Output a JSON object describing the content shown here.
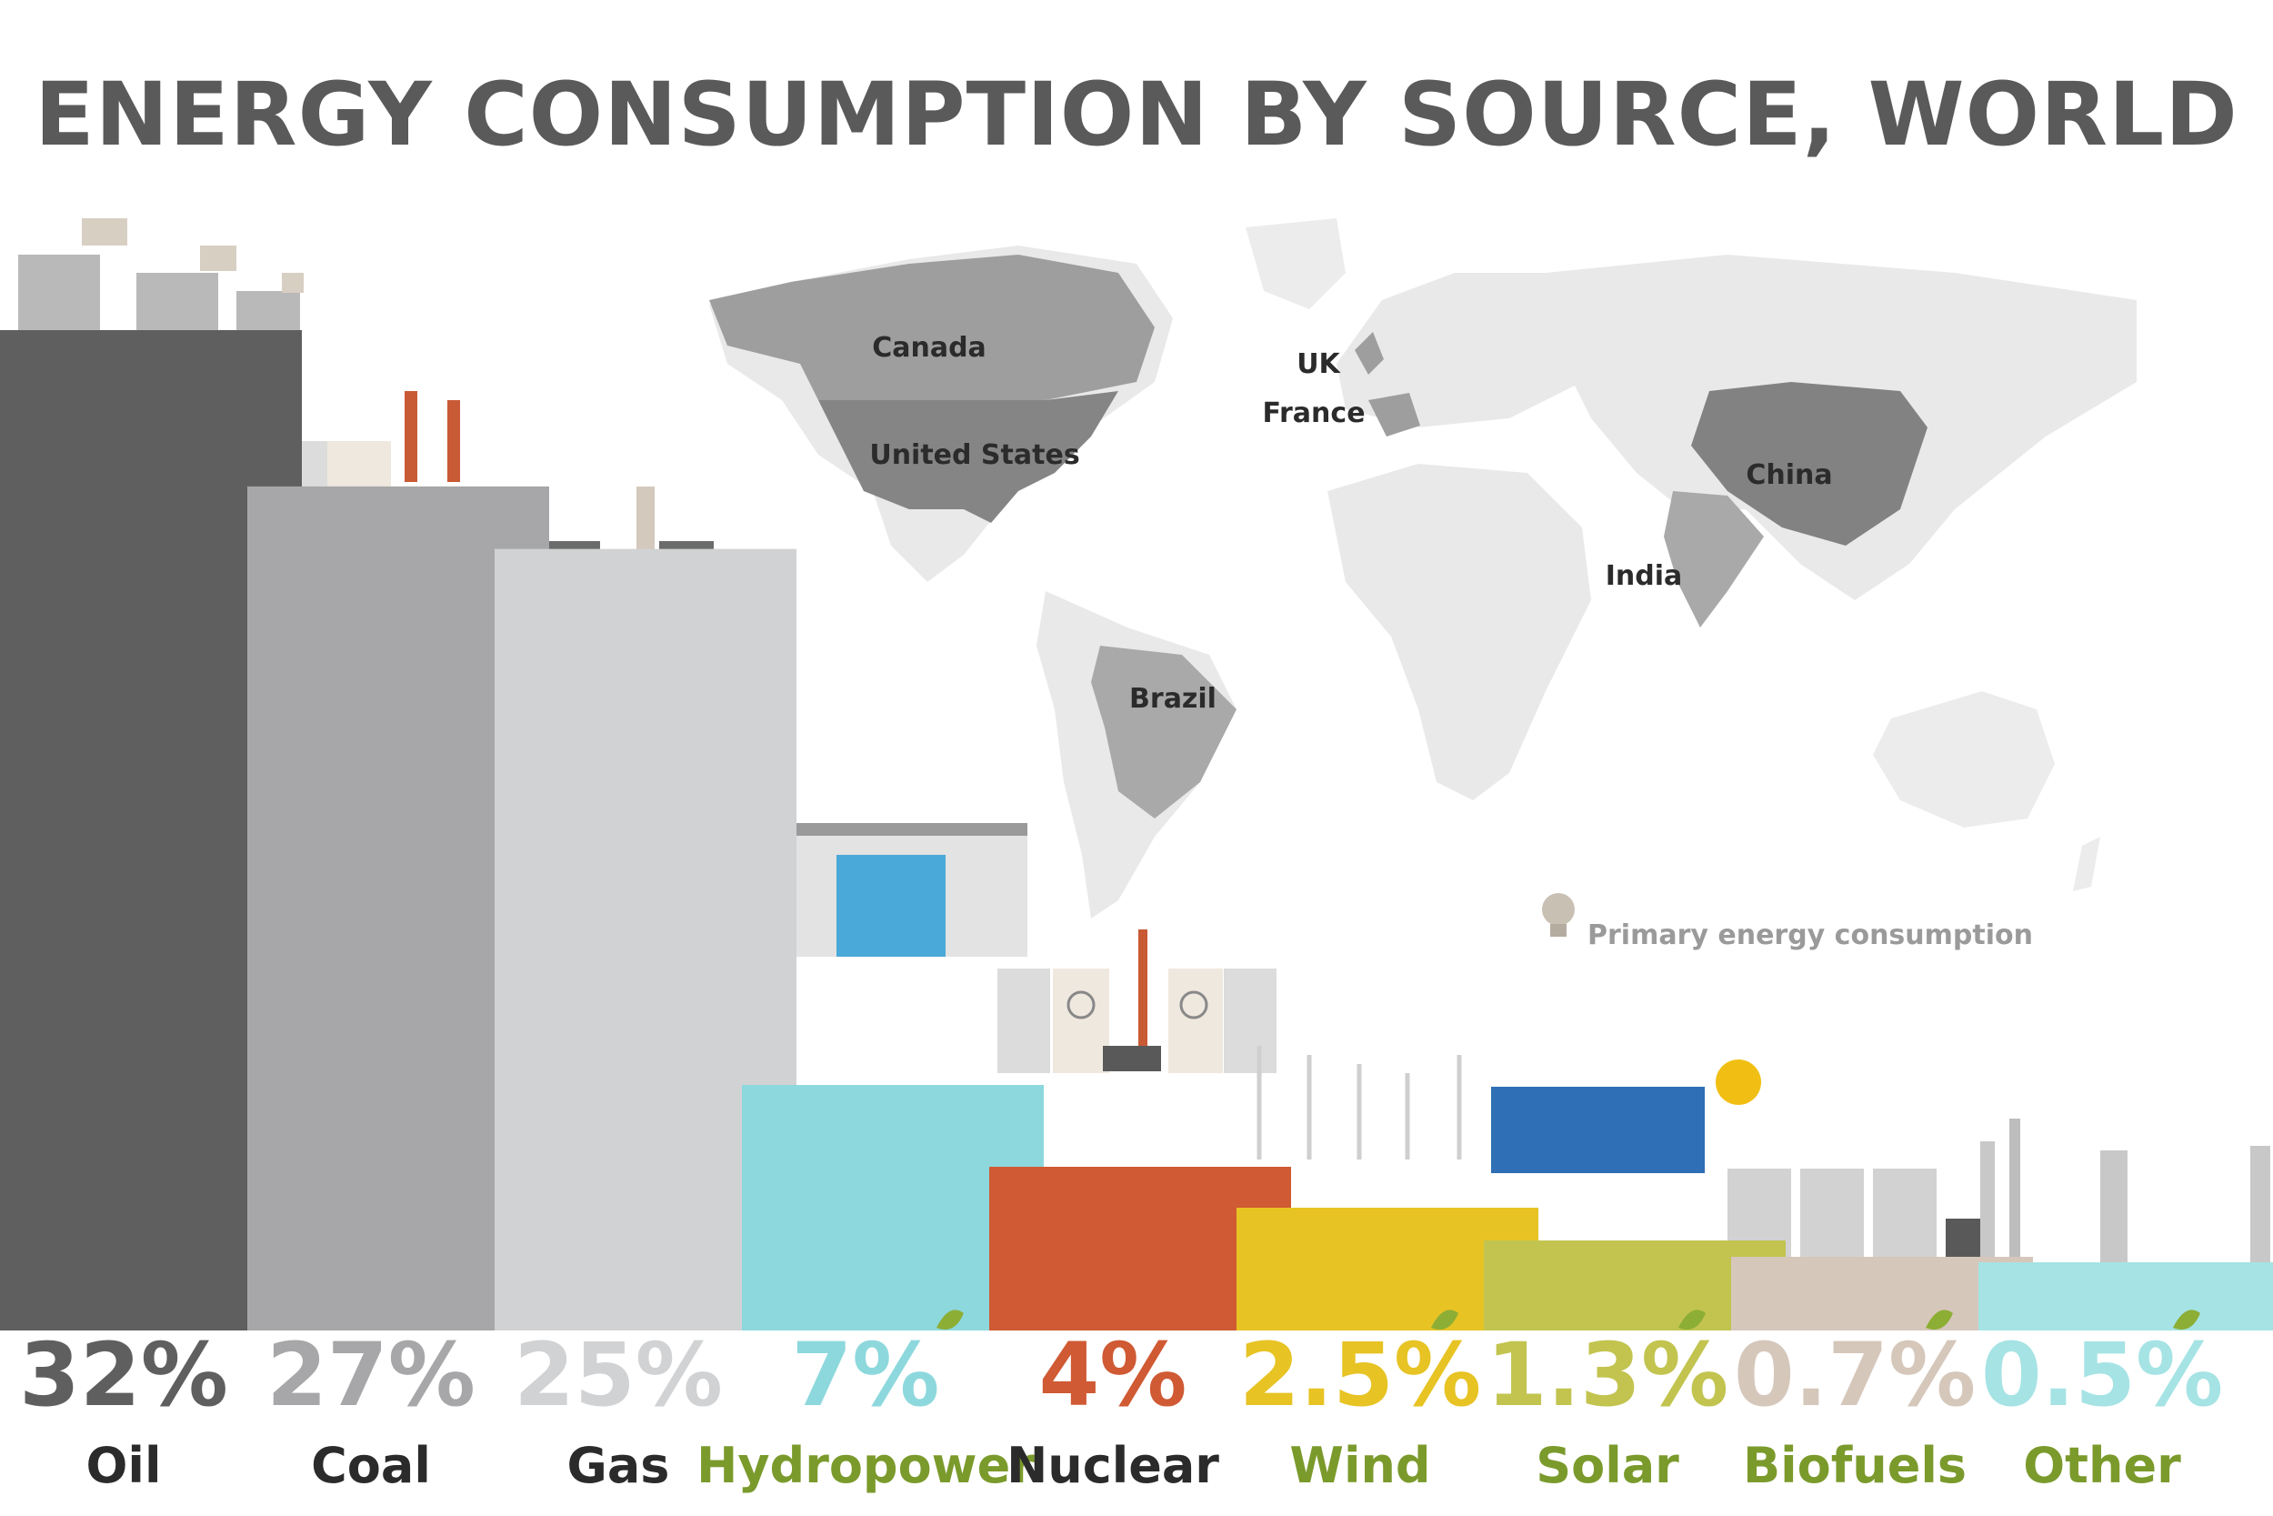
{
  "title": "ENERGY CONSUMPTION BY SOURCE, WORLD",
  "legend": {
    "label": "Primary energy consumption",
    "icon": "lightbulb-icon"
  },
  "map_labels": [
    "Canada",
    "United States",
    "UK",
    "France",
    "China",
    "India",
    "Brazil"
  ],
  "chart_data": {
    "type": "bar",
    "title": "ENERGY CONSUMPTION BY SOURCE, WORLD",
    "unit": "%",
    "categories": [
      "Oil",
      "Coal",
      "Gas",
      "Hydropower",
      "Nuclear",
      "Wind",
      "Solar",
      "Biofuels",
      "Other"
    ],
    "values": [
      32,
      27,
      25,
      7,
      4,
      2.5,
      1.3,
      0.7,
      0.5
    ],
    "value_labels": [
      "32%",
      "27%",
      "25%",
      "7%",
      "4%",
      "2.5%",
      "1.3%",
      "0.7%",
      "0.5%"
    ],
    "renewable": [
      false,
      false,
      false,
      true,
      false,
      true,
      true,
      true,
      true
    ],
    "colors": [
      "#5f5f5f",
      "#a7a7a9",
      "#d1d2d4",
      "#8dd8dd",
      "#cf5a33",
      "#e7c324",
      "#c2c44f",
      "#d6c7bb",
      "#a6e3e4"
    ],
    "label_colors": [
      "#2b2b2b",
      "#2b2b2b",
      "#2b2b2b",
      "#7b9a2c",
      "#2b2b2b",
      "#7b9a2c",
      "#7b9a2c",
      "#7b9a2c",
      "#7b9a2c"
    ]
  }
}
